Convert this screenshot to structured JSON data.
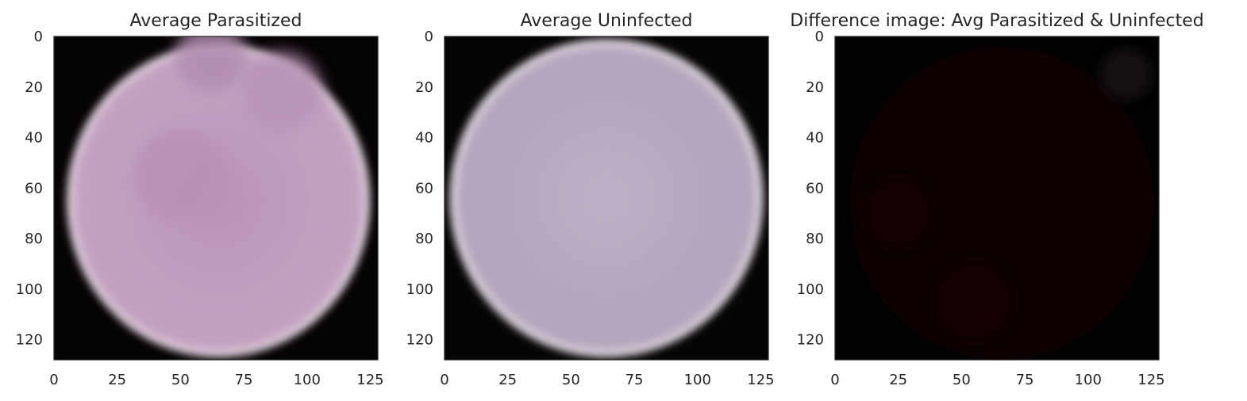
{
  "chart_data": [
    {
      "type": "image",
      "title": "Average Parasitized",
      "image_size": [
        128,
        128
      ],
      "xlim": [
        0,
        128
      ],
      "ylim": [
        128,
        0
      ],
      "x_ticks": [
        0,
        25,
        50,
        75,
        100,
        125
      ],
      "y_ticks": [
        0,
        20,
        40,
        60,
        80,
        100,
        120
      ],
      "grid": false,
      "content": {
        "background_color": "#060304",
        "cell_color": "#c2a0c0",
        "center_color": "#b993b7",
        "rim_color": "#e8e2e6",
        "cell_center": [
          65,
          65
        ],
        "cell_radii": [
          60,
          62
        ],
        "spots": [
          {
            "x": 62,
            "y": 8,
            "r": 14,
            "color": "#b08bae"
          },
          {
            "x": 90,
            "y": 22,
            "r": 16,
            "color": "#b893b6"
          },
          {
            "x": 50,
            "y": 55,
            "r": 18,
            "color": "#b790b5"
          }
        ]
      }
    },
    {
      "type": "image",
      "title": "Average Uninfected",
      "image_size": [
        128,
        128
      ],
      "xlim": [
        0,
        128
      ],
      "ylim": [
        128,
        0
      ],
      "x_ticks": [
        0,
        25,
        50,
        75,
        100,
        125
      ],
      "y_ticks": [
        0,
        20,
        40,
        60,
        80,
        100,
        120
      ],
      "grid": false,
      "content": {
        "background_color": "#060404",
        "cell_color": "#b4a6bd",
        "center_color": "#bcb1c6",
        "rim_color": "#ebe6ea",
        "cell_center": [
          64,
          64
        ],
        "cell_radii": [
          62,
          63
        ],
        "spots": []
      }
    },
    {
      "type": "image",
      "title": "Difference image: Avg Parasitized & Uninfected",
      "image_size": [
        128,
        128
      ],
      "xlim": [
        0,
        128
      ],
      "ylim": [
        128,
        0
      ],
      "x_ticks": [
        0,
        25,
        50,
        75,
        100,
        125
      ],
      "y_ticks": [
        0,
        20,
        40,
        60,
        80,
        100,
        120
      ],
      "grid": false,
      "content": {
        "background_color": "#030203",
        "cell_color": "#0a0103",
        "center_color": "#070102",
        "rim_color": "#100708",
        "cell_center": [
          66,
          66
        ],
        "cell_radii": [
          60,
          62
        ],
        "spots": [
          {
            "x": 55,
            "y": 105,
            "r": 16,
            "color": "#160205"
          },
          {
            "x": 25,
            "y": 70,
            "r": 14,
            "color": "#120205"
          },
          {
            "x": 115,
            "y": 15,
            "r": 10,
            "color": "#1c1519"
          }
        ]
      }
    }
  ]
}
